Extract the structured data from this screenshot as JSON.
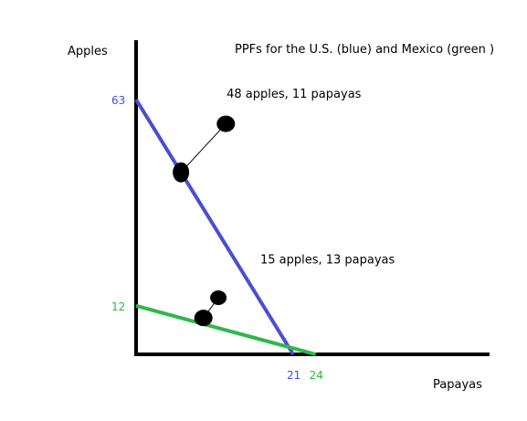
{
  "chart_data": {
    "type": "line",
    "title": "PPFs for the U.S. (blue) and Mexico (green )",
    "xlabel": "Papayas",
    "ylabel": "Apples",
    "xlim": [
      0,
      32
    ],
    "ylim": [
      0,
      75
    ],
    "series": [
      {
        "color": "#4a4fd0",
        "x": [
          0,
          21
        ],
        "y": [
          63,
          0
        ],
        "y_intercept_label": "63",
        "x_intercept_label": "21"
      },
      {
        "color": "#2eb84a",
        "x": [
          0,
          24
        ],
        "y": [
          12,
          0
        ],
        "y_intercept_label": "12",
        "x_intercept_label": "24"
      }
    ],
    "points": [
      {
        "x": 6,
        "y": 45,
        "series": 0
      },
      {
        "x": 12,
        "y": 57
      },
      {
        "x": 9,
        "y": 9,
        "series": 1
      },
      {
        "x": 11,
        "y": 14
      }
    ],
    "annotations": [
      {
        "text": "48 apples, 11 papayas",
        "x": 12.1,
        "y": 63.5
      },
      {
        "text": "15 apples, 13 papayas",
        "x": 16.6,
        "y": 22.5
      }
    ]
  }
}
